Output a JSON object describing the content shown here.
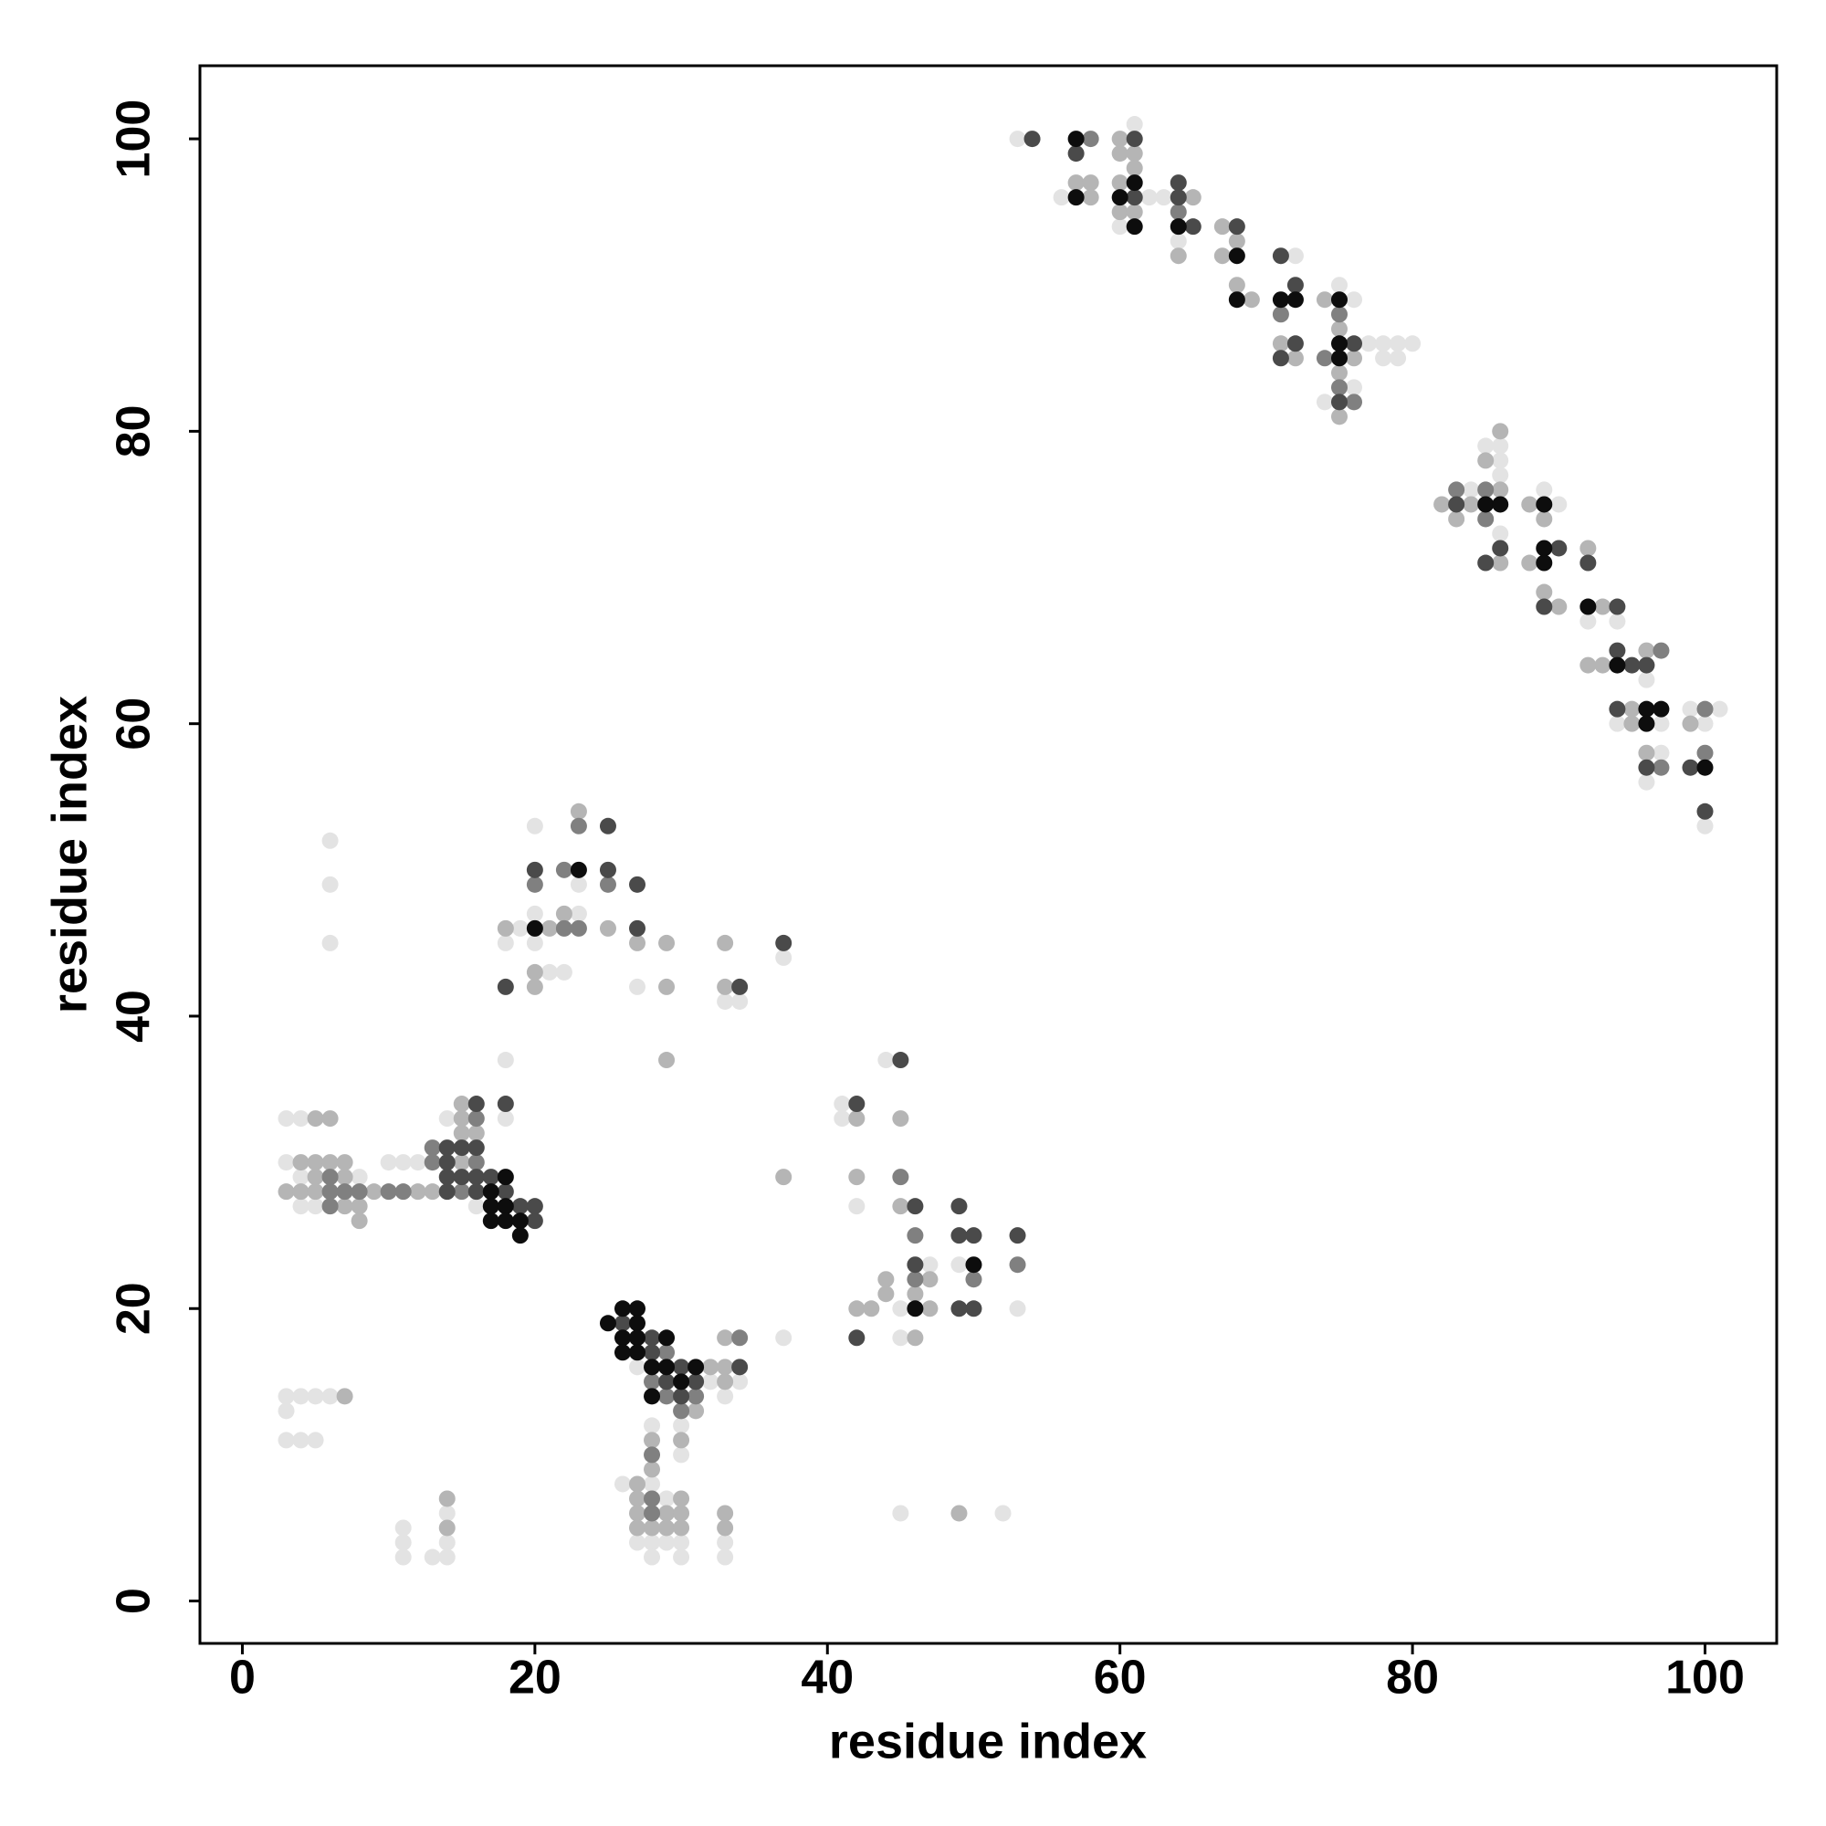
{
  "chart_data": {
    "type": "scatter",
    "x_label": "residue index",
    "y_label": "residue index",
    "xlim": [
      -2.9,
      104.9
    ],
    "ylim": [
      -2.9,
      105
    ],
    "xticks": [
      0,
      20,
      40,
      60,
      80,
      100
    ],
    "yticks": [
      0,
      20,
      40,
      60,
      80,
      100
    ],
    "grid": false,
    "series": [
      {
        "color": "#e3e3e3",
        "x": [
          53,
          61,
          56,
          62,
          60,
          63,
          64,
          72,
          75,
          76,
          77,
          78,
          79,
          80,
          78,
          79,
          76,
          74,
          84,
          85,
          86,
          86,
          86,
          86,
          89,
          90,
          92,
          94,
          96,
          94,
          97,
          97,
          96,
          99,
          101,
          100,
          100,
          6,
          6,
          6,
          20,
          23,
          20,
          23,
          19,
          18,
          20,
          37,
          21,
          22,
          27,
          33,
          34,
          18,
          44,
          3,
          4,
          14,
          18,
          41,
          41,
          3,
          10,
          11,
          12,
          4,
          8,
          4,
          5,
          16,
          42,
          47,
          49,
          45,
          53,
          45,
          37,
          27,
          32,
          34,
          33,
          28,
          30,
          30,
          28,
          26,
          29,
          27,
          28,
          29,
          30,
          33,
          28,
          30,
          33,
          3,
          4,
          5,
          6,
          3,
          3,
          4,
          5,
          11,
          11,
          11,
          13,
          14,
          14,
          14,
          45,
          52
        ],
        "values": [
          100,
          101,
          96,
          96,
          94,
          96,
          93,
          92,
          90,
          89,
          86,
          86,
          86,
          86,
          85,
          85,
          83,
          82,
          76,
          79,
          79,
          78,
          77,
          73,
          76,
          75,
          67,
          67,
          63,
          60,
          60,
          58,
          56,
          61,
          61,
          60,
          53,
          52,
          49,
          45,
          53,
          49,
          47,
          47,
          46,
          45,
          45,
          44,
          43,
          43,
          42,
          41,
          41,
          37,
          37,
          33,
          33,
          33,
          33,
          34,
          33,
          30,
          30,
          30,
          30,
          29,
          29,
          27,
          27,
          27,
          27,
          23,
          23,
          20,
          20,
          18,
          18,
          16,
          15,
          15,
          14,
          12,
          12,
          10,
          8,
          8,
          7,
          4,
          4,
          4,
          4,
          4,
          3,
          3,
          3,
          14,
          14,
          14,
          14,
          13,
          11,
          11,
          11,
          5,
          4,
          3,
          3,
          3,
          6,
          4,
          6,
          6
        ]
      },
      {
        "color": "#b5b5b5",
        "x": [
          60,
          57,
          58,
          58,
          60,
          61,
          61,
          60,
          60,
          61,
          65,
          64,
          67,
          68,
          67,
          68,
          69,
          71,
          72,
          74,
          75,
          76,
          75,
          75,
          82,
          83,
          84,
          86,
          85,
          86,
          86,
          88,
          89,
          88,
          89,
          90,
          92,
          93,
          92,
          93,
          96,
          95,
          95,
          96,
          99,
          23,
          22,
          18,
          21,
          25,
          27,
          29,
          33,
          20,
          20,
          29,
          33,
          29,
          5,
          6,
          15,
          15,
          42,
          45,
          4,
          5,
          6,
          7,
          15,
          15,
          16,
          5,
          7,
          37,
          42,
          3,
          4,
          5,
          9,
          12,
          13,
          7,
          8,
          45,
          8,
          44,
          47,
          44,
          46,
          42,
          43,
          47,
          46,
          33,
          33,
          32,
          33,
          31,
          28,
          30,
          28,
          27,
          30,
          27,
          27,
          29,
          30,
          33,
          27,
          28,
          29,
          30,
          33,
          7,
          14,
          14,
          49
        ],
        "values": [
          100,
          97,
          97,
          96,
          99,
          99,
          98,
          97,
          95,
          95,
          96,
          92,
          94,
          93,
          92,
          90,
          89,
          86,
          85,
          89,
          87,
          85,
          84,
          81,
          75,
          74,
          75,
          80,
          78,
          76,
          71,
          75,
          74,
          71,
          69,
          68,
          72,
          68,
          64,
          64,
          65,
          61,
          60,
          58,
          60,
          54,
          47,
          46,
          46,
          46,
          45,
          45,
          45,
          43,
          42,
          42,
          42,
          37,
          33,
          33,
          34,
          33,
          33,
          33,
          30,
          30,
          30,
          30,
          30,
          32,
          32,
          29,
          29,
          29,
          29,
          28,
          28,
          28,
          28,
          28,
          28,
          27,
          27,
          27,
          26,
          22,
          22,
          21,
          21,
          20,
          20,
          20,
          18,
          18,
          16,
          16,
          15,
          13,
          11,
          11,
          9,
          8,
          7,
          7,
          6,
          6,
          6,
          6,
          5,
          5,
          5,
          5,
          5,
          14,
          7,
          5,
          6
        ]
      },
      {
        "color": "#808080",
        "x": [
          58,
          64,
          71,
          75,
          74,
          75,
          76,
          83,
          85,
          85,
          97,
          97,
          100,
          100,
          23,
          22,
          20,
          25,
          22,
          23,
          45,
          13,
          13,
          16,
          16,
          6,
          6,
          7,
          8,
          10,
          11,
          15,
          6,
          46,
          53,
          46,
          50,
          29,
          34,
          28,
          29,
          31,
          30,
          28,
          28,
          28
        ],
        "values": [
          100,
          95,
          88,
          88,
          85,
          83,
          82,
          76,
          76,
          74,
          65,
          57,
          58,
          61,
          53,
          50,
          49,
          49,
          46,
          46,
          29,
          31,
          30,
          30,
          33,
          29,
          28,
          28,
          28,
          28,
          28,
          28,
          27,
          25,
          23,
          22,
          22,
          17,
          18,
          15,
          14,
          14,
          13,
          10,
          7,
          6
        ]
      },
      {
        "color": "#4a4a4a",
        "x": [
          54,
          57,
          61,
          61,
          64,
          64,
          65,
          68,
          71,
          72,
          72,
          71,
          76,
          75,
          83,
          85,
          86,
          90,
          89,
          92,
          94,
          94,
          95,
          96,
          94,
          96,
          99,
          100,
          25,
          20,
          25,
          27,
          27,
          37,
          18,
          34,
          45,
          16,
          18,
          42,
          14,
          15,
          16,
          14,
          14,
          15,
          16,
          17,
          14,
          16,
          18,
          19,
          20,
          46,
          49,
          20,
          49,
          50,
          53,
          46,
          49,
          50,
          42,
          26,
          28,
          28,
          30,
          34,
          29,
          31,
          30
        ],
        "values": [
          100,
          99,
          100,
          96,
          97,
          96,
          94,
          94,
          92,
          90,
          86,
          85,
          86,
          82,
          75,
          71,
          72,
          72,
          68,
          71,
          68,
          65,
          64,
          64,
          61,
          57,
          57,
          54,
          53,
          50,
          50,
          49,
          46,
          45,
          42,
          42,
          37,
          34,
          34,
          34,
          31,
          31,
          31,
          30,
          29,
          29,
          29,
          29,
          28,
          28,
          28,
          27,
          27,
          27,
          27,
          26,
          25,
          25,
          25,
          23,
          20,
          20,
          18,
          19,
          18,
          17,
          16,
          16,
          15,
          15,
          14
        ]
      },
      {
        "color": "#0d0d0d",
        "x": [
          57,
          57,
          61,
          60,
          61,
          64,
          68,
          68,
          71,
          72,
          75,
          75,
          75,
          85,
          86,
          89,
          89,
          89,
          92,
          94,
          96,
          97,
          96,
          100,
          20,
          23,
          18,
          17,
          17,
          18,
          17,
          18,
          19,
          19,
          50,
          46,
          25,
          26,
          27,
          27,
          26,
          27,
          29,
          26,
          27,
          28,
          29,
          31,
          30,
          28
        ],
        "values": [
          100,
          96,
          97,
          96,
          94,
          94,
          92,
          89,
          89,
          89,
          89,
          86,
          85,
          75,
          75,
          75,
          72,
          71,
          68,
          64,
          61,
          61,
          60,
          57,
          46,
          50,
          29,
          28,
          27,
          27,
          26,
          26,
          26,
          25,
          23,
          20,
          19,
          20,
          20,
          19,
          18,
          18,
          18,
          17,
          17,
          16,
          16,
          16,
          15,
          14
        ]
      }
    ]
  }
}
